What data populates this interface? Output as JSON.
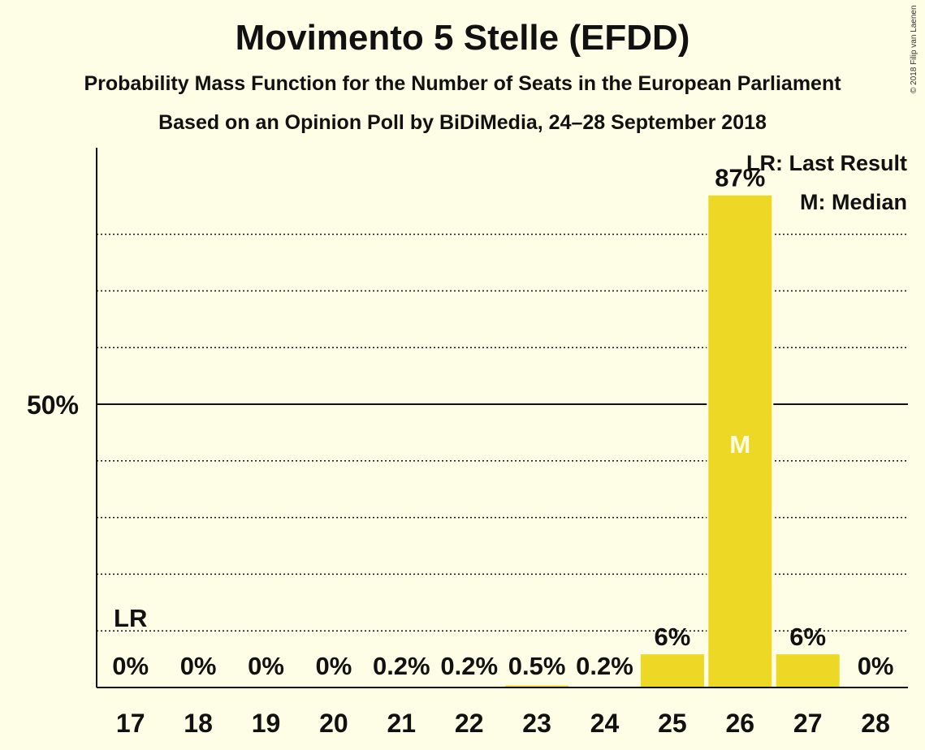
{
  "title": "Movimento 5 Stelle (EFDD)",
  "subtitle": "Probability Mass Function for the Number of Seats in the European Parliament",
  "subtitle2": "Based on an Opinion Poll by BiDiMedia, 24–28 September 2018",
  "copyright": "© 2018 Filip van Laenen",
  "chart_data": {
    "type": "bar",
    "categories": [
      "17",
      "18",
      "19",
      "20",
      "21",
      "22",
      "23",
      "24",
      "25",
      "26",
      "27",
      "28"
    ],
    "values": [
      0,
      0,
      0,
      0,
      0.2,
      0.2,
      0.5,
      0.2,
      6,
      87,
      6,
      0
    ],
    "value_labels": [
      "0%",
      "0%",
      "0%",
      "0%",
      "0.2%",
      "0.2%",
      "0.5%",
      "0.2%",
      "6%",
      "87%",
      "6%",
      "0%"
    ],
    "ylim": [
      0,
      95
    ],
    "y_tick_values": [
      50
    ],
    "y_tick_labels": [
      "50%"
    ],
    "y_gridlines": [
      10,
      20,
      30,
      40,
      60,
      70,
      80
    ],
    "bar_color": "#EDD925",
    "last_result_category": "17",
    "median_category": "26",
    "last_result_marker": "LR",
    "median_marker": "M",
    "legend": [
      "LR: Last Result",
      "M: Median"
    ],
    "legend_position": "top-right"
  }
}
